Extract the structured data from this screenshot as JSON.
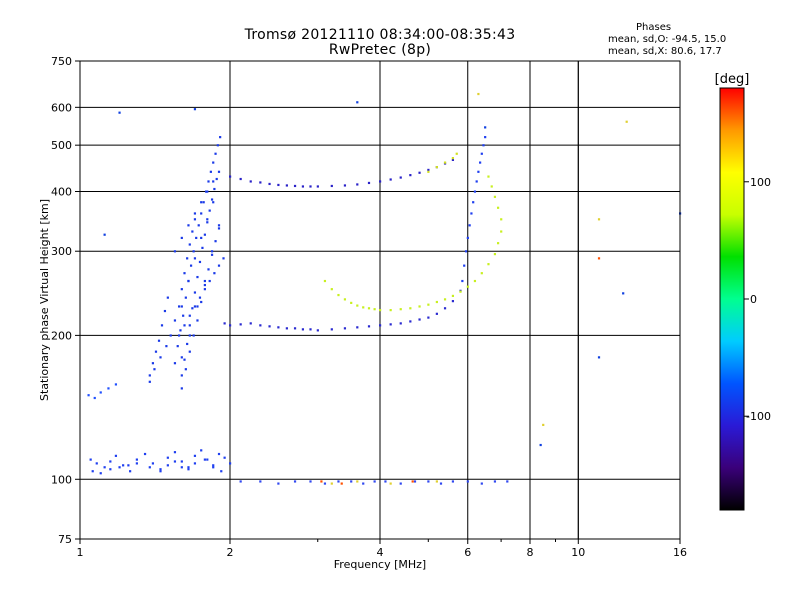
{
  "header": {
    "title_line1": "Tromsø 20121110 08:34:00-08:35:43",
    "title_line2": "RwPretec (8p)"
  },
  "phases_box": {
    "heading": "Phases",
    "line_o": "mean, sd,O: -94.5, 15.0",
    "line_x": "mean, sd,X:  80.6, 17.7"
  },
  "chart_data": {
    "type": "scatter",
    "xlabel": "Frequency [MHz]",
    "ylabel": "Stationary phase Virtual Height [km]",
    "x_scale": "log",
    "y_scale": "log",
    "xlim": [
      1,
      16
    ],
    "ylim": [
      75,
      750
    ],
    "x_ticks": [
      1,
      2,
      4,
      6,
      8,
      10,
      16
    ],
    "x_tick_labels": [
      "1",
      "2",
      "4",
      "6",
      "8",
      "10",
      "16"
    ],
    "y_ticks": [
      75,
      100,
      200,
      300,
      400,
      500,
      600,
      750
    ],
    "y_tick_labels": [
      "75",
      "100",
      "200",
      "300",
      "400",
      "500",
      "600",
      "750"
    ],
    "grid": true,
    "colorbar": {
      "label": "[deg]",
      "range": [
        -180,
        180
      ],
      "tick_values": [
        100,
        0,
        -100
      ],
      "tick_labels": [
        "100",
        "0",
        "-100"
      ],
      "colors": [
        "#000000",
        "#3a007a",
        "#2a1ad6",
        "#0055ff",
        "#00ccff",
        "#00ff90",
        "#00e000",
        "#c8ff00",
        "#ffff00",
        "#ff9900",
        "#ff0000"
      ]
    },
    "series": [
      {
        "color": "#1f3ff0",
        "x": [
          1.05,
          1.08,
          1.12,
          1.15,
          1.18,
          1.22,
          1.26,
          1.3,
          1.35,
          1.4,
          1.45,
          1.5,
          1.55,
          1.6,
          1.65,
          1.7,
          1.75,
          1.8,
          1.85,
          1.9,
          1.95,
          2.0,
          1.06,
          1.1,
          1.15,
          1.2,
          1.25,
          1.3,
          1.38,
          1.45,
          1.5,
          1.55,
          1.6,
          1.65,
          1.7,
          1.78,
          1.85,
          1.92
        ],
        "y": [
          110,
          108,
          106,
          109,
          112,
          107,
          104,
          110,
          113,
          108,
          105,
          111,
          114,
          109,
          106,
          112,
          115,
          110,
          107,
          113,
          111,
          108,
          104,
          103,
          105,
          106,
          107,
          108,
          106,
          104,
          107,
          109,
          106,
          105,
          108,
          110,
          106,
          104
        ]
      },
      {
        "color": "#2050ff",
        "x": [
          1.04,
          1.07,
          1.1,
          1.14,
          1.18
        ],
        "y": [
          150,
          148,
          152,
          155,
          158
        ]
      },
      {
        "color": "#1a3ae8",
        "x": [
          1.38,
          1.4,
          1.42,
          1.44,
          1.46,
          1.48,
          1.5,
          1.38,
          1.41,
          1.45,
          1.49,
          1.52,
          1.55,
          1.58,
          1.6,
          1.62,
          1.64,
          1.66,
          1.68,
          1.7,
          1.55,
          1.57,
          1.59,
          1.61,
          1.63,
          1.65,
          1.67,
          1.69,
          1.71,
          1.73,
          1.75,
          1.77,
          1.79,
          1.81,
          1.83,
          1.85,
          1.87,
          1.89,
          1.91,
          1.6,
          1.62,
          1.64,
          1.66,
          1.68,
          1.7,
          1.72,
          1.74,
          1.76,
          1.78,
          1.8,
          1.82,
          1.84,
          1.86,
          1.88,
          1.6,
          1.63,
          1.66,
          1.69,
          1.72,
          1.75,
          1.78,
          1.81,
          1.84,
          1.87,
          1.9,
          1.58,
          1.62,
          1.66,
          1.7,
          1.74,
          1.78,
          1.82,
          1.86,
          1.9,
          1.94,
          1.55,
          1.6,
          1.65,
          1.7,
          1.75,
          1.8,
          1.85,
          1.9,
          1.6,
          1.65,
          1.7,
          1.75,
          1.8,
          1.85,
          1.6,
          1.66,
          1.72,
          1.78,
          1.84,
          1.9
        ],
        "y": [
          165,
          175,
          185,
          195,
          210,
          225,
          240,
          160,
          170,
          180,
          190,
          200,
          215,
          230,
          250,
          270,
          290,
          310,
          330,
          350,
          175,
          190,
          205,
          220,
          240,
          260,
          280,
          300,
          320,
          340,
          360,
          380,
          400,
          420,
          440,
          460,
          480,
          500,
          520,
          165,
          178,
          192,
          210,
          228,
          246,
          265,
          285,
          305,
          325,
          345,
          365,
          385,
          405,
          425,
          155,
          170,
          185,
          200,
          215,
          235,
          255,
          275,
          295,
          315,
          335,
          200,
          210,
          220,
          230,
          240,
          250,
          260,
          270,
          280,
          290,
          300,
          320,
          340,
          360,
          380,
          400,
          420,
          440,
          230,
          260,
          290,
          320,
          350,
          380,
          180,
          200,
          230,
          260,
          300,
          340
        ]
      },
      {
        "color": "#2a2ad0",
        "x": [
          1.95,
          2.0,
          2.1,
          2.2,
          2.3,
          2.4,
          2.5,
          2.6,
          2.7,
          2.8,
          2.9,
          3.0,
          3.2,
          3.4,
          3.6,
          3.8,
          4.0,
          4.2,
          4.4,
          4.6,
          4.8,
          5.0,
          5.2,
          5.4,
          5.6,
          5.8
        ],
        "y": [
          212,
          210,
          211,
          212,
          210,
          209,
          208,
          207,
          207,
          206,
          206,
          205,
          206,
          207,
          208,
          209,
          210,
          211,
          212,
          214,
          216,
          218,
          222,
          228,
          236,
          248
        ]
      },
      {
        "color": "#1f3ff0",
        "x": [
          5.85,
          5.9,
          5.95,
          6.0,
          6.05,
          6.1,
          6.15,
          6.2,
          6.25,
          6.3,
          6.35,
          6.4,
          6.45,
          6.5
        ],
        "y": [
          260,
          280,
          300,
          320,
          340,
          360,
          380,
          400,
          420,
          440,
          460,
          480,
          500,
          520
        ]
      },
      {
        "color": "#2a22c8",
        "x": [
          2.0,
          2.1,
          2.2,
          2.3,
          2.4,
          2.5,
          2.6,
          2.7,
          2.8,
          2.9,
          3.0,
          3.2,
          3.4,
          3.6,
          3.8,
          4.0,
          4.2,
          4.4,
          4.6,
          4.8,
          5.0,
          5.2,
          5.4,
          5.6
        ],
        "y": [
          430,
          425,
          420,
          418,
          415,
          413,
          412,
          411,
          410,
          410,
          410,
          411,
          412,
          414,
          417,
          420,
          424,
          428,
          433,
          438,
          444,
          450,
          458,
          466
        ]
      },
      {
        "color": "#c8f020",
        "x": [
          3.1,
          3.2,
          3.3,
          3.4,
          3.5,
          3.6,
          3.7,
          3.8,
          3.9,
          4.0,
          4.2,
          4.4,
          4.6,
          4.8,
          5.0,
          5.2,
          5.4,
          5.6,
          5.8,
          6.0,
          6.2,
          6.4,
          6.6,
          6.8,
          6.9,
          7.0,
          7.0,
          6.9,
          6.8,
          6.7,
          6.6
        ],
        "y": [
          260,
          250,
          243,
          238,
          234,
          231,
          229,
          228,
          227,
          226,
          226,
          227,
          228,
          230,
          232,
          235,
          238,
          242,
          247,
          253,
          260,
          270,
          282,
          296,
          312,
          330,
          350,
          370,
          390,
          410,
          430
        ]
      },
      {
        "color": "#d2e020",
        "x": [
          5.0,
          5.2,
          5.4,
          5.6,
          5.7
        ],
        "y": [
          440,
          450,
          460,
          470,
          480
        ]
      },
      {
        "color": "#3048f0",
        "x": [
          2.1,
          2.3,
          2.5,
          2.7,
          2.9,
          3.1,
          3.3,
          3.5,
          3.7,
          3.9,
          4.1,
          4.4,
          4.7,
          5.0,
          5.3,
          5.6,
          6.0,
          6.4,
          6.8,
          7.2
        ],
        "y": [
          99,
          99,
          98,
          99,
          99,
          98,
          99,
          99,
          98,
          99,
          99,
          98,
          99,
          99,
          98,
          99,
          99,
          98,
          99,
          99
        ]
      },
      {
        "color": "#ff5000",
        "x": [
          3.05,
          3.35,
          4.65,
          11.0
        ],
        "y": [
          99,
          98,
          99,
          290
        ]
      },
      {
        "color": "#e0d030",
        "x": [
          3.2,
          3.6,
          4.2,
          5.2,
          6.3,
          8.5,
          11.0,
          12.5
        ],
        "y": [
          98,
          99,
          98,
          99,
          640,
          130,
          350,
          560
        ]
      },
      {
        "color": "#1040e0",
        "x": [
          1.12,
          1.2,
          1.7,
          3.6,
          6.5,
          8.4,
          11.0,
          12.3,
          16.0
        ],
        "y": [
          325,
          585,
          595,
          615,
          545,
          118,
          180,
          245,
          360
        ]
      }
    ]
  }
}
